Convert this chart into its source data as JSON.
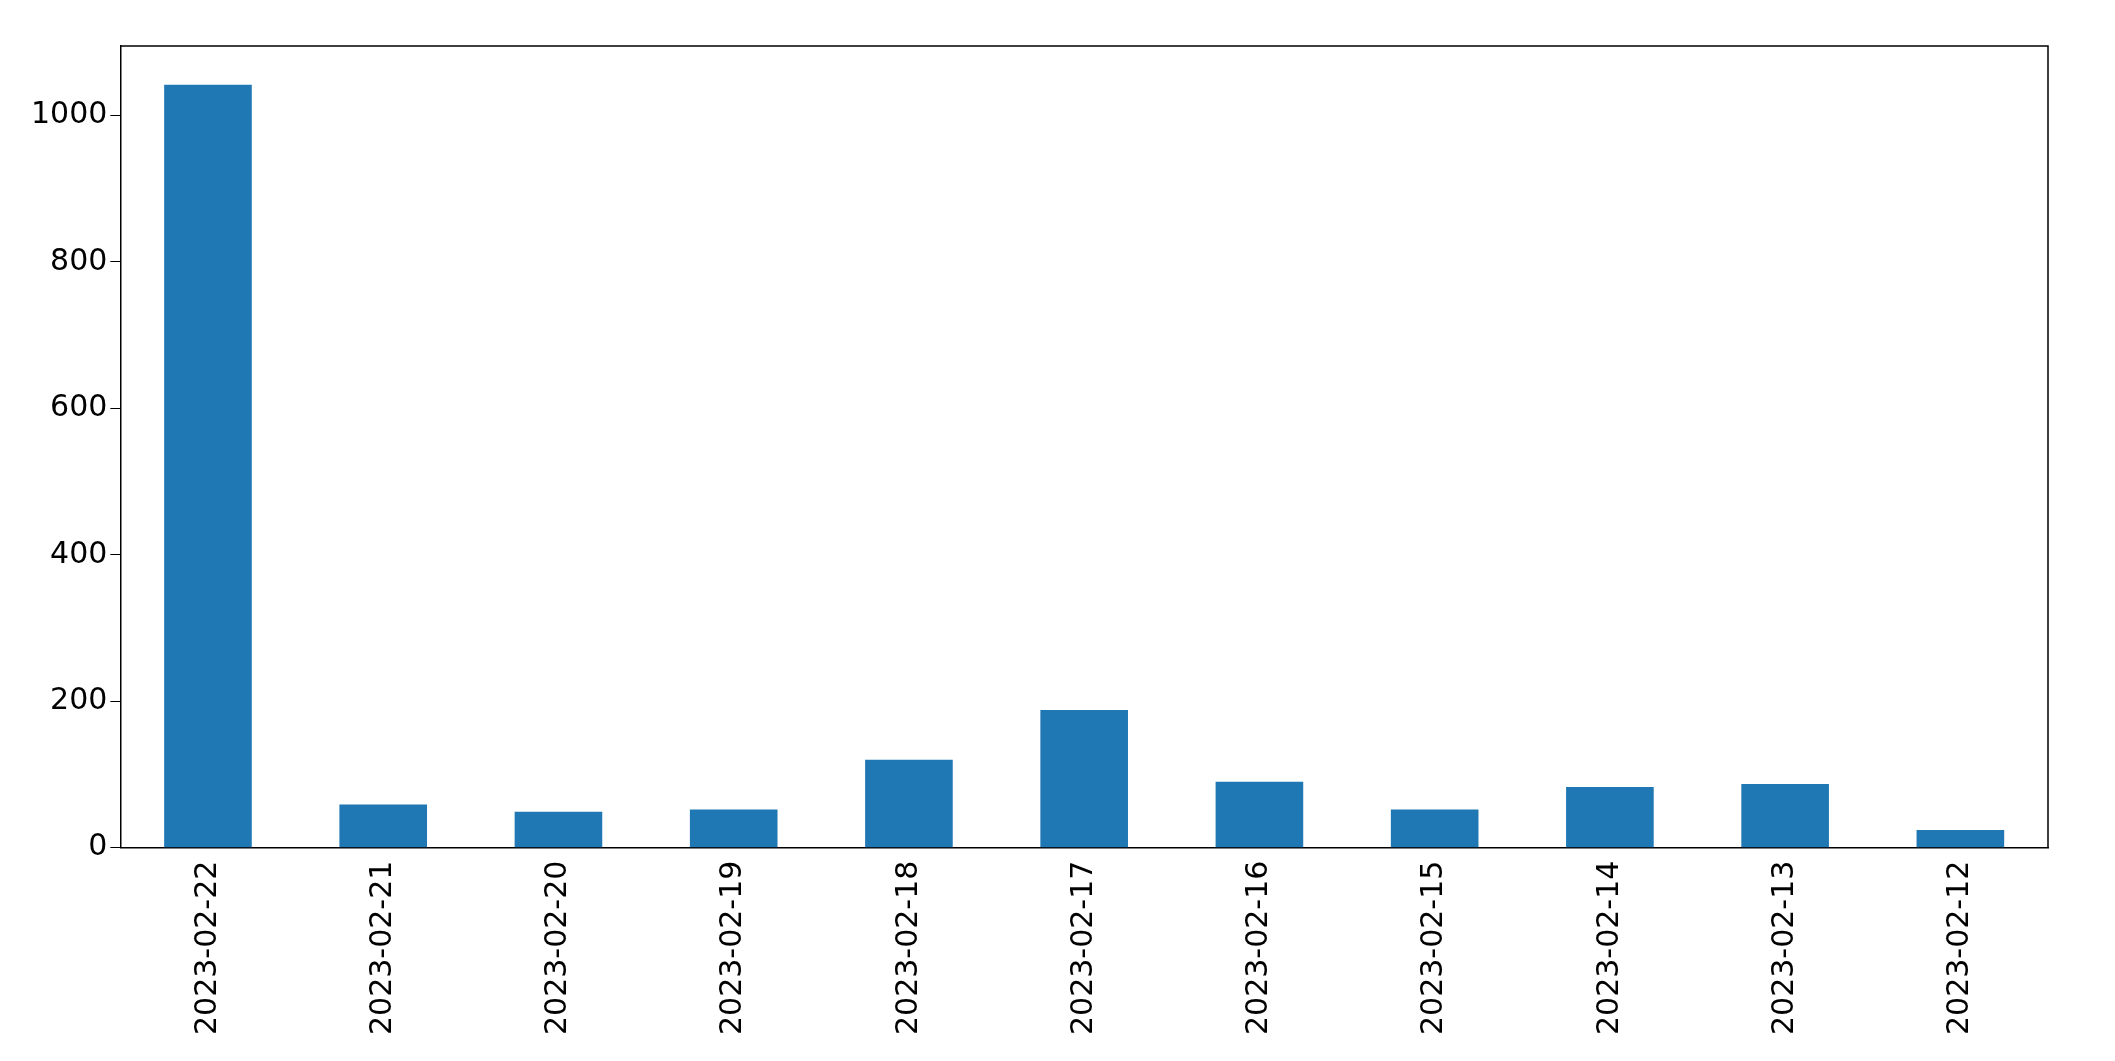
{
  "chart_data": {
    "type": "bar",
    "categories": [
      "2023-02-22",
      "2023-02-21",
      "2023-02-20",
      "2023-02-19",
      "2023-02-18",
      "2023-02-17",
      "2023-02-16",
      "2023-02-15",
      "2023-02-14",
      "2023-02-13",
      "2023-02-12"
    ],
    "values": [
      1042,
      59,
      49,
      52,
      120,
      188,
      90,
      52,
      83,
      87,
      24
    ],
    "color": "#1f77b4",
    "ylim": [
      0,
      1095
    ],
    "yticks": [
      0,
      200,
      400,
      600,
      800,
      1000
    ],
    "grid": false,
    "legend": false
  }
}
